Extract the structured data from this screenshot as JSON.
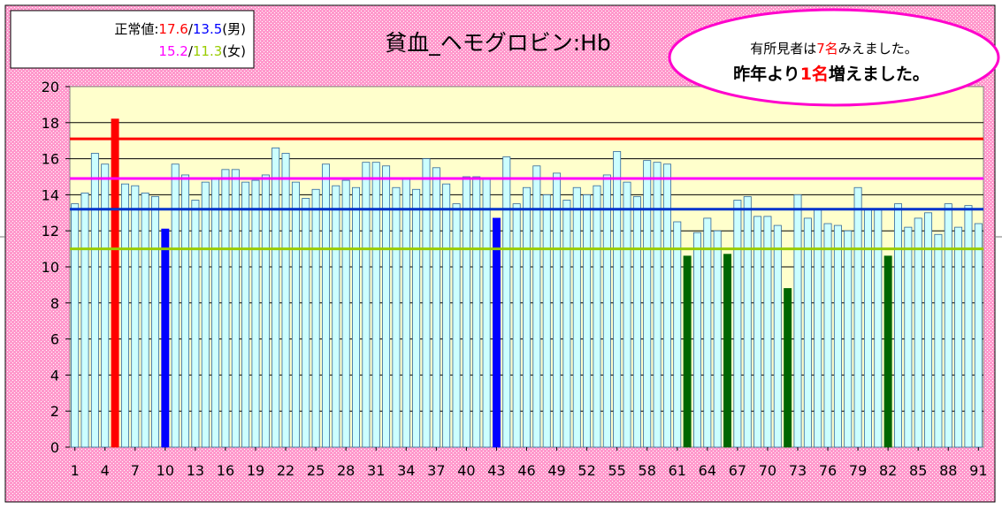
{
  "normal_box": {
    "label": "正常値:",
    "male_high": "17.6",
    "sep1": "/",
    "male_low": "13.5",
    "male_suffix": "(男)",
    "female_high": "15.2",
    "sep2": "/",
    "female_low": "11.3",
    "female_suffix": "(女)"
  },
  "callout": {
    "line1_pre": "有所見者は",
    "line1_num": "7名",
    "line1_post": "みえました。",
    "line2_pre": "昨年より",
    "line2_num": "1名",
    "line2_post": "増えました。"
  },
  "colors": {
    "plot_bg": "#ffffcc",
    "outer_bg": "#ff99cc",
    "bar_normal": "#ccffff",
    "bar_male_high": "#ff0000",
    "bar_male_low": "#0000ff",
    "bar_female_low": "#006600",
    "line_male_high": "#ff0000",
    "line_female_high": "#ff00ff",
    "line_male_low": "#0033cc",
    "line_female_low": "#99cc00",
    "callout_border": "#ff00cc"
  },
  "chart_data": {
    "type": "bar",
    "title": "貧血_ヘモグロビン:Hb",
    "ylim": [
      0,
      20
    ],
    "yticks": [
      0,
      2,
      4,
      6,
      8,
      10,
      12,
      14,
      16,
      18,
      20
    ],
    "xticks": [
      1,
      4,
      7,
      10,
      13,
      16,
      19,
      22,
      25,
      28,
      31,
      34,
      37,
      40,
      43,
      46,
      49,
      52,
      55,
      58,
      61,
      64,
      67,
      70,
      73,
      76,
      79,
      82,
      85,
      88,
      91
    ],
    "grid": true,
    "x": [
      1,
      2,
      3,
      4,
      5,
      6,
      7,
      8,
      9,
      10,
      11,
      12,
      13,
      14,
      15,
      16,
      17,
      18,
      19,
      20,
      21,
      22,
      23,
      24,
      25,
      26,
      27,
      28,
      29,
      30,
      31,
      32,
      33,
      34,
      35,
      36,
      37,
      38,
      39,
      40,
      41,
      42,
      43,
      44,
      45,
      46,
      47,
      48,
      49,
      50,
      51,
      52,
      53,
      54,
      55,
      56,
      57,
      58,
      59,
      60,
      61,
      62,
      63,
      64,
      65,
      66,
      67,
      68,
      69,
      70,
      71,
      72,
      73,
      74,
      75,
      76,
      77,
      78,
      79,
      80,
      81,
      82,
      83,
      84,
      85,
      86,
      87,
      88,
      89,
      90,
      91
    ],
    "values": [
      13.5,
      14.1,
      16.3,
      15.7,
      18.2,
      14.6,
      14.5,
      14.1,
      13.9,
      12.1,
      15.7,
      15.1,
      13.7,
      14.7,
      14.9,
      15.4,
      15.4,
      14.7,
      14.8,
      15.1,
      16.6,
      16.3,
      14.7,
      13.8,
      14.3,
      15.7,
      14.5,
      14.8,
      14.4,
      15.8,
      15.8,
      15.6,
      14.4,
      14.9,
      14.3,
      16.0,
      15.5,
      14.6,
      13.5,
      15.0,
      15.0,
      14.9,
      12.7,
      16.1,
      13.5,
      14.4,
      15.6,
      14.0,
      15.2,
      13.7,
      14.4,
      14.0,
      14.5,
      15.1,
      16.4,
      14.7,
      13.9,
      15.9,
      15.8,
      15.7,
      12.5,
      10.6,
      11.9,
      12.7,
      12.0,
      10.7,
      13.7,
      13.9,
      12.8,
      12.8,
      12.3,
      8.8,
      14.0,
      12.7,
      13.2,
      12.4,
      12.3,
      12.0,
      14.4,
      13.2,
      13.2,
      10.6,
      13.5,
      12.2,
      12.7,
      13.0,
      11.8,
      13.5,
      12.2,
      13.4,
      12.4
    ],
    "bar_status": {
      "male_high": [
        5
      ],
      "male_low": [
        10,
        43
      ],
      "female_low": [
        62,
        66,
        72,
        82
      ]
    },
    "reference_lines": [
      {
        "value": 17.1,
        "color": "#ff0000"
      },
      {
        "value": 14.9,
        "color": "#ff00ff"
      },
      {
        "value": 13.2,
        "color": "#0033cc"
      },
      {
        "value": 11.0,
        "color": "#99cc00"
      }
    ]
  }
}
